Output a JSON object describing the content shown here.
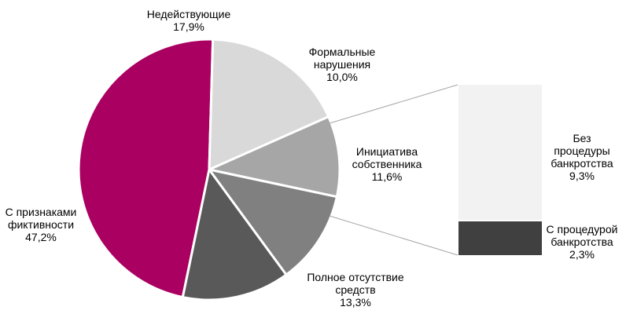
{
  "chart_data": {
    "type": "pie",
    "subtype": "pie-of-bar",
    "title": "",
    "slices": [
      {
        "label": "С признаками фиктивности",
        "value": 47.2,
        "display": "47,2%",
        "color": "#AA0061"
      },
      {
        "label": "Недействующие",
        "value": 17.9,
        "display": "17,9%",
        "color": "#D9D9D9"
      },
      {
        "label": "Формальные нарушения",
        "value": 10.0,
        "display": "10,0%",
        "color": "#A6A6A6"
      },
      {
        "label": "Инициатива собственника",
        "value": 11.6,
        "display": "11,6%",
        "color": "#808080"
      },
      {
        "label": "Полное отсутствие средств",
        "value": 13.3,
        "display": "13,3%",
        "color": "#595959"
      }
    ],
    "breakdown": {
      "of": "Инициатива собственника",
      "segments": [
        {
          "label": "Без процедуры банкротства",
          "value": 9.3,
          "display": "9,3%",
          "color": "#F2F2F2"
        },
        {
          "label": "С процедурой банкротства",
          "value": 2.3,
          "display": "2,3%",
          "color": "#404040"
        }
      ]
    },
    "connector_color": "#A6A6A6"
  },
  "labels": {
    "fiktiv": {
      "line1": "С признаками",
      "line2": "фиктивности",
      "pct": "47,2%"
    },
    "nedeist": {
      "line1": "Недействующие",
      "pct": "17,9%"
    },
    "formal": {
      "line1": "Формальные",
      "line2": "нарушения",
      "pct": "10,0%"
    },
    "initiativa": {
      "line1": "Инициатива",
      "line2": "собственника",
      "pct": "11,6%"
    },
    "polnoe": {
      "line1": "Полное отсутствие",
      "line2": "средств",
      "pct": "13,3%"
    },
    "bez": {
      "line1": "Без",
      "line2": "процедуры",
      "line3": "банкротства",
      "pct": "9,3%"
    },
    "s_proc": {
      "line1": "С процедурой",
      "line2": "банкротства",
      "pct": "2,3%"
    }
  }
}
